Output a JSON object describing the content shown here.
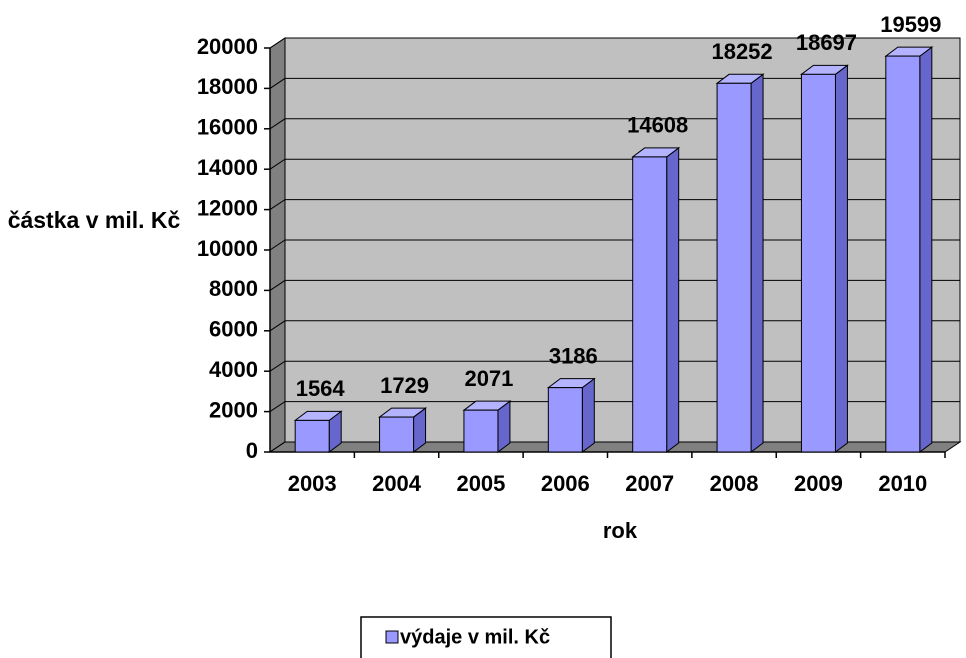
{
  "chart_data": {
    "type": "bar3d",
    "y_label": "částka v mil. Kč",
    "x_label": "rok",
    "categories": [
      "2003",
      "2004",
      "2005",
      "2006",
      "2007",
      "2008",
      "2009",
      "2010"
    ],
    "series": [
      {
        "name": "výdaje v mil. Kč",
        "color": "#9999ff",
        "values": [
          1564,
          1729,
          2071,
          3186,
          14608,
          18252,
          18697,
          19599
        ]
      }
    ],
    "ylim": [
      0,
      20000
    ],
    "yticks": [
      0,
      2000,
      4000,
      6000,
      8000,
      10000,
      12000,
      14000,
      16000,
      18000,
      20000
    ],
    "grid": true,
    "legend": "bottom"
  }
}
